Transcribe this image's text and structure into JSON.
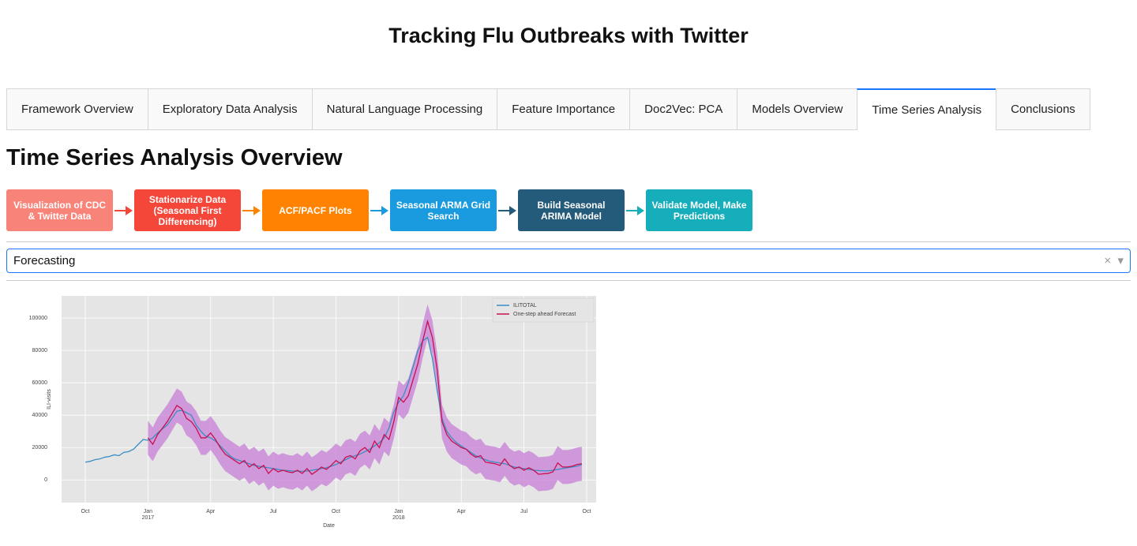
{
  "header": {
    "title": "Tracking Flu Outbreaks with Twitter"
  },
  "tabs": {
    "items": [
      "Framework Overview",
      "Exploratory Data Analysis",
      "Natural Language Processing",
      "Feature Importance",
      "Doc2Vec: PCA",
      "Models Overview",
      "Time Series Analysis",
      "Conclusions"
    ],
    "selected": 6
  },
  "section": {
    "title": "Time Series Analysis Overview"
  },
  "flow": {
    "steps": [
      {
        "label": "Visualization of CDC & Twitter Data",
        "color": "#f88379"
      },
      {
        "label": "Stationarize Data (Seasonal First Differencing)",
        "color": "#f4473a"
      },
      {
        "label": "ACF/PACF Plots",
        "color": "#ff8300"
      },
      {
        "label": "Seasonal ARMA Grid Search",
        "color": "#1a9be0"
      },
      {
        "label": "Build Seasonal ARIMA Model",
        "color": "#245a7a"
      },
      {
        "label": "Validate Model, Make Predictions",
        "color": "#17aebb"
      }
    ]
  },
  "dropdown": {
    "value": "Forecasting"
  },
  "chart_data": {
    "type": "line",
    "x_label": "Date",
    "y_label": "ILI-visits",
    "categories": [
      "Oct",
      null,
      null,
      null,
      null,
      null,
      null,
      null,
      null,
      null,
      null,
      null,
      null,
      "Jan\n2017",
      null,
      null,
      null,
      null,
      null,
      null,
      null,
      null,
      null,
      null,
      null,
      null,
      "Apr",
      null,
      null,
      null,
      null,
      null,
      null,
      null,
      null,
      null,
      null,
      null,
      null,
      "Jul",
      null,
      null,
      null,
      null,
      null,
      null,
      null,
      null,
      null,
      null,
      null,
      null,
      "Oct",
      null,
      null,
      null,
      null,
      null,
      null,
      null,
      null,
      null,
      null,
      null,
      null,
      "Jan\n2018",
      null,
      null,
      null,
      null,
      null,
      null,
      null,
      null,
      null,
      null,
      null,
      null,
      "Apr",
      null,
      null,
      null,
      null,
      null,
      null,
      null,
      null,
      null,
      null,
      null,
      null,
      "Jul",
      null,
      null,
      null,
      null,
      null,
      null,
      null,
      null,
      null,
      null,
      null,
      null,
      "Oct"
    ],
    "series": [
      {
        "name": "ILITOTAL",
        "color": "#3c8dc4",
        "values": [
          11000,
          11500,
          12500,
          13000,
          14000,
          14500,
          15500,
          15000,
          17000,
          17500,
          19000,
          22000,
          25000,
          24500,
          26000,
          29000,
          31500,
          34000,
          38000,
          42500,
          43000,
          41500,
          40000,
          34000,
          30000,
          27000,
          26000,
          24000,
          21000,
          18000,
          15000,
          13000,
          12000,
          11000,
          10000,
          9000,
          8500,
          8000,
          7500,
          7000,
          6500,
          6000,
          5800,
          5500,
          5400,
          5300,
          5500,
          6000,
          6500,
          7000,
          7500,
          8500,
          9500,
          11000,
          12500,
          14000,
          15000,
          16000,
          17500,
          19000,
          21000,
          23000,
          26000,
          32000,
          42000,
          48000,
          52000,
          60000,
          70000,
          80000,
          86000,
          88000,
          75000,
          55000,
          38000,
          30000,
          26000,
          23000,
          21000,
          19000,
          17000,
          15000,
          13500,
          12500,
          11500,
          11000,
          10500,
          10000,
          9000,
          8000,
          7500,
          7000,
          6500,
          6000,
          5800,
          5600,
          5600,
          6000,
          6500,
          7000,
          7500,
          8000,
          8500,
          9500,
          null
        ]
      },
      {
        "name": "One-step ahead Forecast",
        "color": "#c8104f",
        "values": [
          null,
          null,
          null,
          null,
          null,
          null,
          null,
          null,
          null,
          null,
          null,
          null,
          null,
          26000,
          22000,
          28000,
          32000,
          36000,
          41000,
          46000,
          44000,
          38000,
          36000,
          32000,
          26000,
          26000,
          29000,
          25000,
          20000,
          16000,
          14000,
          12000,
          10000,
          12000,
          8000,
          10000,
          7000,
          9000,
          4000,
          7000,
          5000,
          6000,
          5000,
          4500,
          6000,
          4000,
          7000,
          3500,
          5500,
          8000,
          6500,
          9000,
          12000,
          10000,
          14000,
          15000,
          13000,
          18000,
          20000,
          17000,
          24000,
          20000,
          28000,
          25000,
          36000,
          51000,
          48000,
          52000,
          62000,
          72000,
          86000,
          98000,
          88000,
          68000,
          36000,
          28000,
          24000,
          22000,
          20000,
          19000,
          16000,
          14000,
          15000,
          11000,
          10500,
          10000,
          9000,
          13000,
          9000,
          7000,
          8000,
          6000,
          7500,
          6000,
          3500,
          3800,
          4000,
          5000,
          10500,
          8000,
          8000,
          8500,
          9500,
          10000,
          null
        ]
      }
    ],
    "band": {
      "color": "#c77dd6",
      "lower": [
        null,
        null,
        null,
        null,
        null,
        null,
        null,
        null,
        null,
        null,
        null,
        null,
        null,
        15500,
        11500,
        17500,
        21500,
        25500,
        30500,
        35500,
        33500,
        27500,
        25500,
        21500,
        15500,
        15500,
        18500,
        14500,
        9500,
        5500,
        3500,
        1500,
        -500,
        1500,
        -2500,
        -500,
        -3500,
        -1500,
        -6500,
        -3500,
        -5500,
        -4500,
        -5500,
        -6000,
        -4500,
        -6500,
        -3500,
        -7000,
        -5000,
        -2500,
        -4000,
        -1500,
        1500,
        -500,
        3500,
        4500,
        2500,
        7500,
        9500,
        6500,
        13500,
        9500,
        17500,
        14500,
        25500,
        40500,
        37500,
        41500,
        51500,
        61500,
        75500,
        87500,
        77500,
        57500,
        25500,
        17500,
        13500,
        11500,
        9500,
        8500,
        5500,
        3500,
        4500,
        500,
        0,
        -500,
        -1500,
        2500,
        -1500,
        -3500,
        -2500,
        -4500,
        -3000,
        -4500,
        -7000,
        -6700,
        -6500,
        -5500,
        0,
        -2500,
        -2500,
        -2000,
        -1000,
        -500,
        null
      ],
      "upper": [
        null,
        null,
        null,
        null,
        null,
        null,
        null,
        null,
        null,
        null,
        null,
        null,
        null,
        36500,
        32500,
        38500,
        42500,
        46500,
        51500,
        56500,
        54500,
        48500,
        46500,
        42500,
        36500,
        36500,
        39500,
        35500,
        30500,
        26500,
        24500,
        22500,
        20500,
        22500,
        18500,
        20500,
        17500,
        19500,
        14500,
        17500,
        15500,
        16500,
        15500,
        15000,
        16500,
        14500,
        17500,
        14000,
        16000,
        18500,
        17000,
        19500,
        22500,
        20500,
        24500,
        25500,
        23500,
        28500,
        30500,
        27500,
        34500,
        30500,
        38500,
        35500,
        46500,
        61500,
        58500,
        62500,
        72500,
        82500,
        96500,
        108500,
        98500,
        78500,
        46500,
        38500,
        34500,
        32500,
        30500,
        29500,
        26500,
        24500,
        25500,
        21500,
        21000,
        20500,
        19500,
        23500,
        19500,
        17500,
        18500,
        16500,
        18000,
        16500,
        14000,
        14300,
        14500,
        15500,
        21000,
        18500,
        18500,
        19000,
        20000,
        20500,
        null
      ]
    },
    "ylim": [
      -14000,
      113700
    ],
    "yticks": [
      0,
      20000,
      40000,
      60000,
      80000,
      100000
    ],
    "grid": true,
    "legend": "upper right"
  }
}
